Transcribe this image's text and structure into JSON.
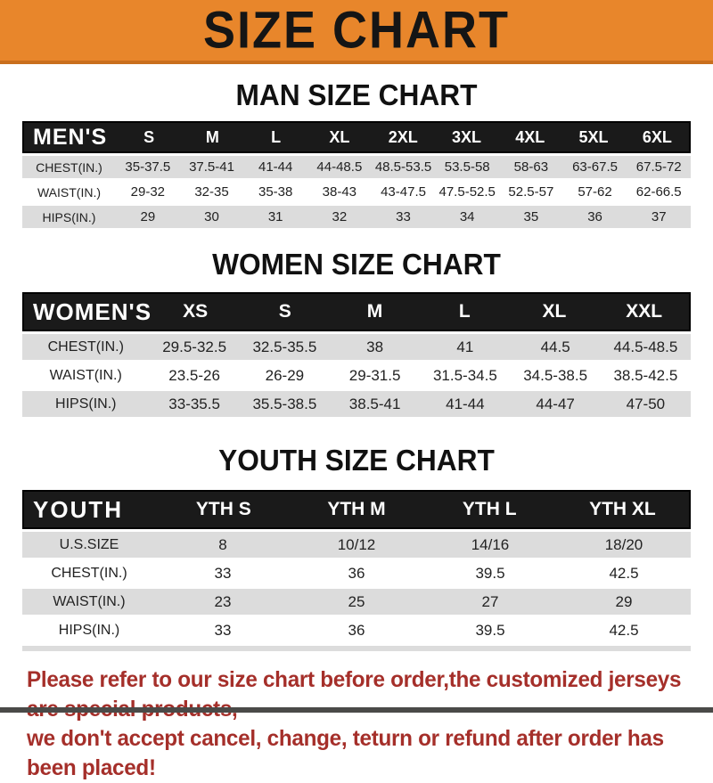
{
  "banner": {
    "title": "SIZE CHART",
    "bg_color": "#E8862B",
    "text_color": "#151515"
  },
  "colors": {
    "header_bar_bg": "#1A1A1A",
    "row_gray": "#DCDCDC",
    "row_white": "#FFFFFF",
    "footer_red": "#A52F2A"
  },
  "tables": [
    {
      "id": "men",
      "title": "MAN SIZE CHART",
      "header_label": "MEN'S",
      "columns": [
        "S",
        "M",
        "L",
        "XL",
        "2XL",
        "3XL",
        "4XL",
        "5XL",
        "6XL"
      ],
      "rows": [
        {
          "label": "CHEST(IN.)",
          "values": [
            "35-37.5",
            "37.5-41",
            "41-44",
            "44-48.5",
            "48.5-53.5",
            "53.5-58",
            "58-63",
            "63-67.5",
            "67.5-72"
          ]
        },
        {
          "label": "WAIST(IN.)",
          "values": [
            "29-32",
            "32-35",
            "35-38",
            "38-43",
            "43-47.5",
            "47.5-52.5",
            "52.5-57",
            "57-62",
            "62-66.5"
          ]
        },
        {
          "label": "HIPS(IN.)",
          "values": [
            "29",
            "30",
            "31",
            "32",
            "33",
            "34",
            "35",
            "36",
            "37"
          ]
        }
      ]
    },
    {
      "id": "women",
      "title": "WOMEN SIZE CHART",
      "header_label": "WOMEN'S",
      "columns": [
        "XS",
        "S",
        "M",
        "L",
        "XL",
        "XXL"
      ],
      "rows": [
        {
          "label": "CHEST(IN.)",
          "values": [
            "29.5-32.5",
            "32.5-35.5",
            "38",
            "41",
            "44.5",
            "44.5-48.5"
          ]
        },
        {
          "label": "WAIST(IN.)",
          "values": [
            "23.5-26",
            "26-29",
            "29-31.5",
            "31.5-34.5",
            "34.5-38.5",
            "38.5-42.5"
          ]
        },
        {
          "label": "HIPS(IN.)",
          "values": [
            "33-35.5",
            "35.5-38.5",
            "38.5-41",
            "41-44",
            "44-47",
            "47-50"
          ]
        }
      ]
    },
    {
      "id": "youth",
      "title": "YOUTH SIZE CHART",
      "header_label": "YOUTH",
      "columns": [
        "YTH S",
        "YTH M",
        "YTH L",
        "YTH XL"
      ],
      "rows": [
        {
          "label": "U.S.SIZE",
          "values": [
            "8",
            "10/12",
            "14/16",
            "18/20"
          ]
        },
        {
          "label": "CHEST(IN.)",
          "values": [
            "33",
            "36",
            "39.5",
            "42.5"
          ]
        },
        {
          "label": "WAIST(IN.)",
          "values": [
            "23",
            "25",
            "27",
            "29"
          ]
        },
        {
          "label": "HIPS(IN.)",
          "values": [
            "33",
            "36",
            "39.5",
            "42.5"
          ]
        }
      ]
    }
  ],
  "footer": {
    "line1": "Please refer to our size chart before order,the customized jerseys are special products,",
    "line2": "we don't accept cancel, change, teturn or refund after order has been placed!"
  }
}
